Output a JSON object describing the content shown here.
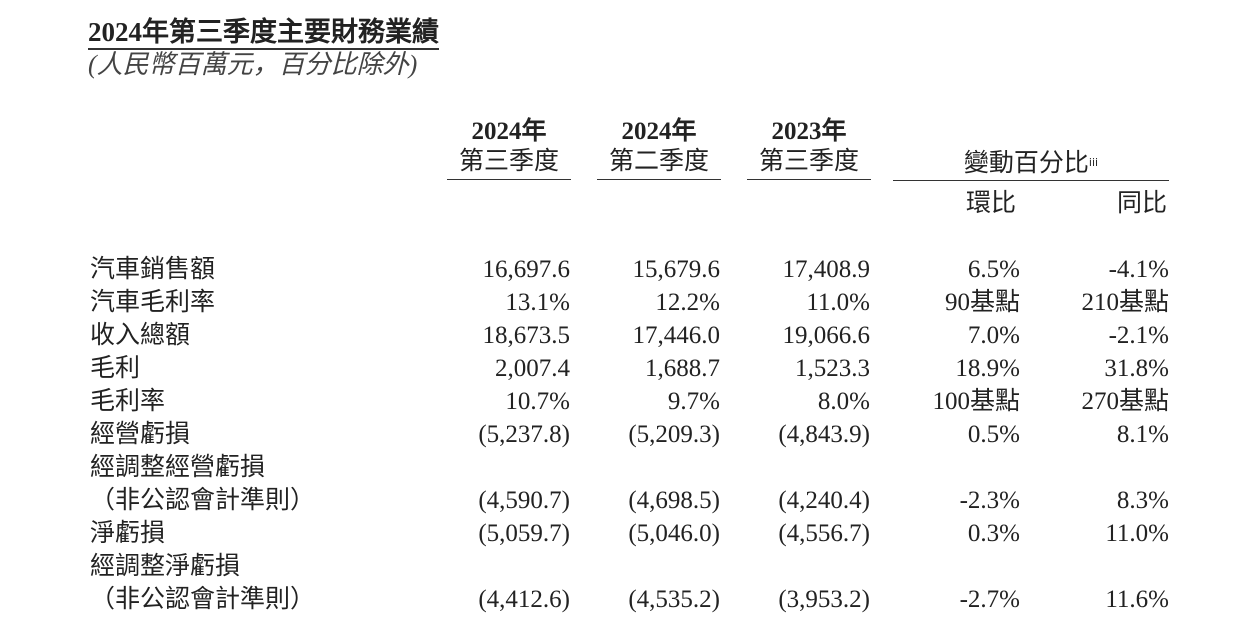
{
  "title": "2024年第三季度主要財務業績",
  "subtitle": "(人民幣百萬元，百分比除外)",
  "columns": [
    {
      "year": "2024年",
      "quarter": "第三季度"
    },
    {
      "year": "2024年",
      "quarter": "第二季度"
    },
    {
      "year": "2023年",
      "quarter": "第三季度"
    }
  ],
  "change_header": {
    "label": "變動百分比",
    "note": "iii",
    "qoq": "環比",
    "yoy": "同比"
  },
  "rows": [
    {
      "label": "汽車銷售額",
      "values": [
        "16,697.6",
        "15,679.6",
        "17,408.9",
        "6.5%",
        "-4.1%"
      ]
    },
    {
      "label": "汽車毛利率",
      "values": [
        "13.1%",
        "12.2%",
        "11.0%",
        "90基點",
        "210基點"
      ]
    },
    {
      "label": "收入總額",
      "values": [
        "18,673.5",
        "17,446.0",
        "19,066.6",
        "7.0%",
        "-2.1%"
      ]
    },
    {
      "label": "毛利",
      "values": [
        "2,007.4",
        "1,688.7",
        "1,523.3",
        "18.9%",
        "31.8%"
      ]
    },
    {
      "label": "毛利率",
      "values": [
        "10.7%",
        "9.7%",
        "8.0%",
        "100基點",
        "270基點"
      ]
    },
    {
      "label": "經營虧損",
      "values": [
        "(5,237.8)",
        "(5,209.3)",
        "(4,843.9)",
        "0.5%",
        "8.1%"
      ]
    },
    {
      "label": "經調整經營虧損",
      "values": [
        "",
        "",
        "",
        "",
        ""
      ]
    },
    {
      "label": "（非公認會計準則）",
      "values": [
        "(4,590.7)",
        "(4,698.5)",
        "(4,240.4)",
        "-2.3%",
        "8.3%"
      ]
    },
    {
      "label": "淨虧損",
      "values": [
        "(5,059.7)",
        "(5,046.0)",
        "(4,556.7)",
        "0.3%",
        "11.0%"
      ]
    },
    {
      "label": "經調整淨虧損",
      "values": [
        "",
        "",
        "",
        "",
        ""
      ]
    },
    {
      "label": "（非公認會計準則）",
      "values": [
        "(4,412.6)",
        "(4,535.2)",
        "(3,953.2)",
        "-2.7%",
        "11.6%"
      ]
    }
  ]
}
